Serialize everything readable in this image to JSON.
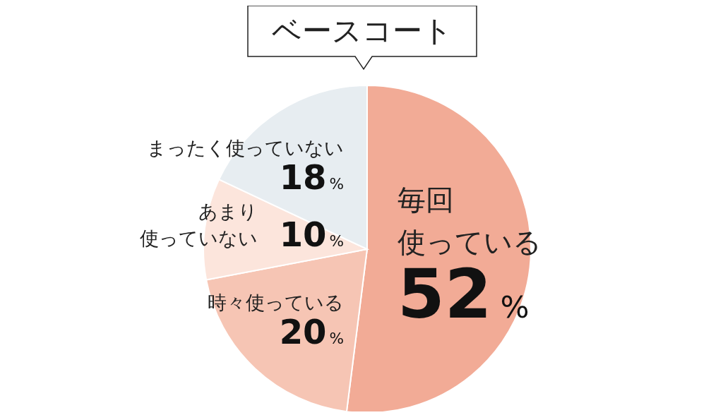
{
  "chart_data": {
    "type": "pie",
    "title": "ベースコート",
    "categories": [
      "毎回使っている",
      "時々使っている",
      "あまり使っていない",
      "まったく使っていない"
    ],
    "values": [
      52,
      20,
      10,
      18
    ],
    "value_labels": [
      "52%",
      "20%",
      "10%",
      "18%"
    ],
    "colors": [
      "#f2ab96",
      "#f6c5b4",
      "#fce5dc",
      "#e7edf1"
    ]
  }
}
